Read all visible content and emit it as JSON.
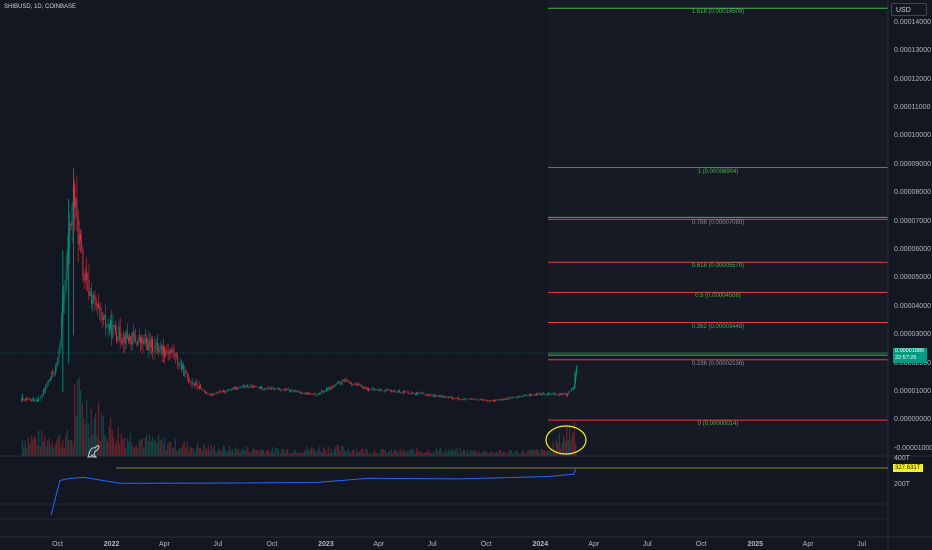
{
  "header": {
    "symbol_line": "SHIBUSD, 1D, COINBASE",
    "currency_button": "USD"
  },
  "price_axis": {
    "ticks": [
      0.00014,
      0.00013,
      0.00012,
      0.00011,
      0.0001,
      9e-05,
      8e-05,
      7e-05,
      6e-05,
      5e-05,
      4e-05,
      3e-05,
      2e-05,
      1e-05,
      0.0,
      -1e-05
    ],
    "labels": [
      "0.00014000",
      "0.00013000",
      "0.00012000",
      "0.00011000",
      "0.00010000",
      "0.00009000",
      "0.00008000",
      "0.00007000",
      "0.00006000",
      "0.00005000",
      "0.00004000",
      "0.00003000",
      "0.00002000",
      "0.00001000",
      "0.00000000",
      "-0.00001000"
    ],
    "current_price_label": "0.00001886",
    "countdown_label": "22:57:26"
  },
  "time_axis": {
    "labels": [
      "Oct",
      "2022",
      "Apr",
      "Jul",
      "Oct",
      "2023",
      "Apr",
      "Jul",
      "Oct",
      "2024",
      "Apr",
      "Jul",
      "Oct",
      "2025",
      "Apr",
      "Jul"
    ],
    "dates": [
      "2021-10-01",
      "2022-01-01",
      "2022-04-01",
      "2022-07-01",
      "2022-10-01",
      "2023-01-01",
      "2023-04-01",
      "2023-07-01",
      "2023-10-01",
      "2024-01-01",
      "2024-04-01",
      "2024-07-01",
      "2024-10-01",
      "2025-01-01",
      "2025-04-01",
      "2025-07-01"
    ]
  },
  "fib_levels": [
    {
      "ratio": 1.618,
      "price": 0.00014509,
      "label": "1.618 (0.00014509)",
      "color": "#4caf50"
    },
    {
      "ratio": 1,
      "price": 8.904e-05,
      "label": "1 (0.00008904)",
      "color": "#f23645"
    },
    {
      "ratio": 0.786,
      "price": 7.08e-05,
      "label": "0.786 (0.00007080)",
      "color": "#f23645"
    },
    {
      "ratio": 0.618,
      "price": 5.57e-05,
      "label": "0.618 (0.00005570)",
      "color": "#f23645"
    },
    {
      "ratio": 0.5,
      "price": 4.508e-05,
      "label": "0.5 (0.00004508)",
      "color": "#f23645"
    },
    {
      "ratio": 0.382,
      "price": 3.448e-05,
      "label": "0.382 (0.00003448)",
      "color": "#f23645"
    },
    {
      "ratio": 0.236,
      "price": 2.136e-05,
      "label": "0.236 (0.00002136)",
      "color": "#f23645"
    },
    {
      "ratio": 0,
      "price": 1.4e-07,
      "label": "0 (0.00000014)",
      "color": "#f23645"
    }
  ],
  "indicator": {
    "labels": [
      "400T",
      "200T"
    ],
    "value_label": "327.631T",
    "line_color": "#2962ff",
    "tag_color": "#f7f316"
  },
  "colors": {
    "background": "#131722",
    "up": "#089981",
    "down": "#f23645",
    "annotation": "#f7f316",
    "fib_good": "#4caf50"
  },
  "chart_data": {
    "type": "line",
    "title": "SHIBUSD, 1D, COINBASE",
    "x": [
      "2021-08-01",
      "2021-09-01",
      "2021-10-01",
      "2021-10-28",
      "2021-11-15",
      "2021-12-15",
      "2022-01-15",
      "2022-02-15",
      "2022-03-15",
      "2022-04-15",
      "2022-05-10",
      "2022-06-15",
      "2022-08-15",
      "2022-10-15",
      "2022-12-15",
      "2023-02-01",
      "2023-03-15",
      "2023-05-15",
      "2023-07-15",
      "2023-08-20",
      "2023-10-15",
      "2023-12-15",
      "2024-01-15",
      "2024-02-15",
      "2024-02-27",
      "2024-03-01"
    ],
    "series": [
      {
        "name": "",
        "values": [
          7e-06,
          7.5e-06,
          2e-05,
          8e-05,
          5e-05,
          3.5e-05,
          3e-05,
          2.8e-05,
          2.6e-05,
          2.4e-05,
          1.5e-05,
          9e-06,
          1.2e-05,
          1.1e-05,
          9e-06,
          1.4e-05,
          1.1e-05,
          1e-05,
          8.5e-06,
          7.5e-06,
          7e-06,
          9e-06,
          9.5e-06,
          9e-06,
          1.2e-05,
          1.9e-05
        ]
      }
    ],
    "volume_x": [
      "2021-10-28",
      "2022-01-15",
      "2022-04-15",
      "2022-07-15",
      "2022-10-15",
      "2023-01-15",
      "2023-04-15",
      "2023-07-15",
      "2023-10-15",
      "2024-01-15",
      "2024-03-01"
    ],
    "volume_values": [
      1,
      0.35,
      0.2,
      0.12,
      0.1,
      0.13,
      0.08,
      0.1,
      0.07,
      0.09,
      0.55
    ],
    "indicator_x": [
      "2021-09-20",
      "2021-10-05",
      "2021-10-20",
      "2021-11-15",
      "2022-01-15",
      "2022-06-15",
      "2022-12-15",
      "2023-03-15",
      "2023-08-15",
      "2024-01-15",
      "2024-02-27",
      "2024-03-01"
    ],
    "indicator_values": [
      20,
      250,
      260,
      265,
      240,
      230,
      240,
      260,
      270,
      275,
      290,
      327.631
    ],
    "ylim": [
      -1.25e-05,
      0.000148
    ],
    "xlim": [
      "2021-06-25",
      "2025-08-15"
    ],
    "grid": false
  }
}
